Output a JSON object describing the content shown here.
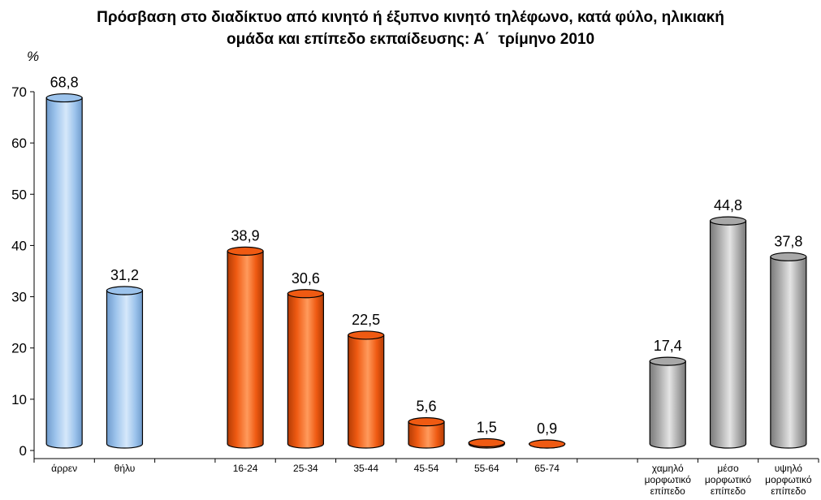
{
  "chart_data": {
    "type": "bar",
    "title": [
      "Πρόσβαση στο διαδίκτυο από κινητό ή έξυπνο κινητό τηλέφωνο, κατά φύλο, ηλικιακή",
      "ομάδα και επίπεδο εκπαίδευσης: Α΄  τρίμηνο 2010"
    ],
    "ylabel": "%",
    "xlabel": "",
    "ylim": [
      0,
      70
    ],
    "yticks": [
      0,
      10,
      20,
      30,
      40,
      50,
      60,
      70
    ],
    "grid": false,
    "legend": "none",
    "groups": [
      {
        "color": "#9cc3ec",
        "colorDark": "#6f9bcc",
        "colorLight": "#d6e8fa",
        "bars": [
          {
            "label": [
              "άρρεν"
            ],
            "value": 68.8,
            "text": "68,8"
          },
          {
            "label": [
              "θήλυ"
            ],
            "value": 31.2,
            "text": "31,2"
          }
        ]
      },
      {
        "color": "#ef5a12",
        "colorDark": "#b33c05",
        "colorLight": "#ff9a5c",
        "bars": [
          {
            "label": [
              "16-24"
            ],
            "value": 38.9,
            "text": "38,9"
          },
          {
            "label": [
              "25-34"
            ],
            "value": 30.6,
            "text": "30,6"
          },
          {
            "label": [
              "35-44"
            ],
            "value": 22.5,
            "text": "22,5"
          },
          {
            "label": [
              "45-54"
            ],
            "value": 5.6,
            "text": "5,6"
          },
          {
            "label": [
              "55-64"
            ],
            "value": 1.5,
            "text": "1,5"
          },
          {
            "label": [
              "65-74"
            ],
            "value": 0.9,
            "text": "0,9"
          }
        ]
      },
      {
        "color": "#a8a8a8",
        "colorDark": "#7a7a7a",
        "colorLight": "#e4e4e4",
        "bars": [
          {
            "label": [
              "χαμηλό",
              "μορφωτικό",
              "επίπεδο"
            ],
            "value": 17.4,
            "text": "17,4"
          },
          {
            "label": [
              "μέσο",
              "μορφωτικό",
              "επίπεδο"
            ],
            "value": 44.8,
            "text": "44,8"
          },
          {
            "label": [
              "υψηλό",
              "μορφωτικό",
              "επίπεδο"
            ],
            "value": 37.8,
            "text": "37,8"
          }
        ]
      }
    ],
    "gap_slots_between_groups": 1
  }
}
